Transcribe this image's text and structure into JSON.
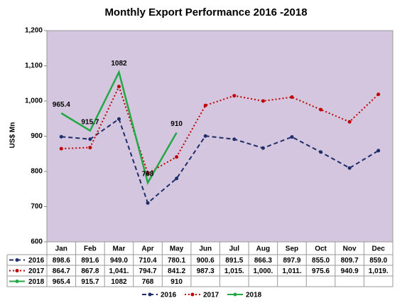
{
  "chart_data": {
    "type": "line",
    "title": "Monthly Export Performance 2016 -2018",
    "y_label": "US$ Mn",
    "categories": [
      "Jan",
      "Feb",
      "Mar",
      "Apr",
      "May",
      "Jun",
      "Jul",
      "Aug",
      "Sep",
      "Oct",
      "Nov",
      "Dec"
    ],
    "series": [
      {
        "name": "2016",
        "color": "#1f2d6b",
        "dash": "6,4",
        "values": [
          898.6,
          891.6,
          949.0,
          710.4,
          780.1,
          900.6,
          891.5,
          866.3,
          897.9,
          855.0,
          809.7,
          859.0
        ],
        "value_labels": [
          "898.6",
          "891.6",
          "949.0",
          "710.4",
          "780.1",
          "900.6",
          "891.5",
          "866.3",
          "897.9",
          "855.0",
          "809.7",
          "859.0"
        ]
      },
      {
        "name": "2017",
        "color": "#c00000",
        "dash": "2,3",
        "values": [
          864.7,
          867.8,
          1041,
          794.7,
          841.2,
          987.3,
          1015,
          1000,
          1011,
          975.6,
          940.9,
          1019
        ],
        "value_labels": [
          "864.7",
          "867.8",
          "1,041.",
          "794.7",
          "841.2",
          "987.3",
          "1,015.",
          "1,000.",
          "1,011.",
          "975.6",
          "940.9",
          "1,019."
        ]
      },
      {
        "name": "2018",
        "color": "#22a845",
        "dash": "none",
        "data_labels": true,
        "values": [
          965.4,
          915.7,
          1082,
          768,
          910,
          null,
          null,
          null,
          null,
          null,
          null,
          null
        ]
      }
    ],
    "ylim": [
      600,
      1200
    ],
    "yticks": [
      600,
      700,
      800,
      900,
      {
        "value": 1000,
        "label": "1,000"
      },
      {
        "value": 1100,
        "label": "1,100"
      },
      {
        "value": 1200,
        "label": "1,200"
      }
    ],
    "grid": false,
    "legend": "bottom"
  }
}
